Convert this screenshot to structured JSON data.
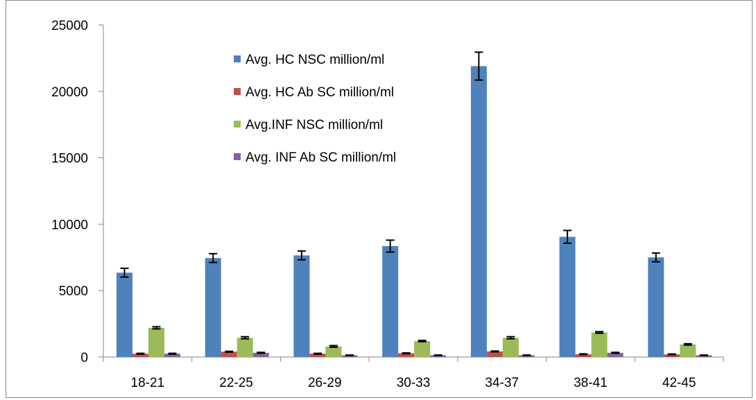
{
  "chart_data": {
    "type": "bar",
    "title": "",
    "xlabel": "",
    "ylabel": "",
    "categories": [
      "18-21",
      "22-25",
      "26-29",
      "30-33",
      "34-37",
      "38-41",
      "42-45"
    ],
    "ylim": [
      0,
      25000
    ],
    "yticks": [
      0,
      5000,
      10000,
      15000,
      20000,
      25000
    ],
    "grid": false,
    "legend_position": "top-center",
    "series": [
      {
        "name": "Avg. HC NSC million/ml",
        "color": "#4F81BD",
        "values": [
          6350,
          7450,
          7650,
          8350,
          21900,
          9050,
          7500
        ],
        "errors": [
          330,
          330,
          330,
          450,
          1050,
          480,
          330
        ]
      },
      {
        "name": "Avg. HC Ab SC  million/ml",
        "color": "#C0504D",
        "values": [
          250,
          400,
          250,
          280,
          420,
          210,
          200
        ],
        "errors": [
          30,
          30,
          30,
          30,
          30,
          30,
          30
        ]
      },
      {
        "name": "Avg.INF NSC   million/ml",
        "color": "#9BBB59",
        "values": [
          2200,
          1450,
          800,
          1200,
          1450,
          1850,
          950
        ],
        "errors": [
          80,
          80,
          60,
          50,
          80,
          60,
          50
        ]
      },
      {
        "name": "Avg. INF Ab SC   million/ml",
        "color": "#8064A2",
        "values": [
          250,
          320,
          130,
          130,
          130,
          320,
          130
        ],
        "errors": [
          30,
          30,
          20,
          20,
          20,
          30,
          20
        ]
      }
    ]
  }
}
